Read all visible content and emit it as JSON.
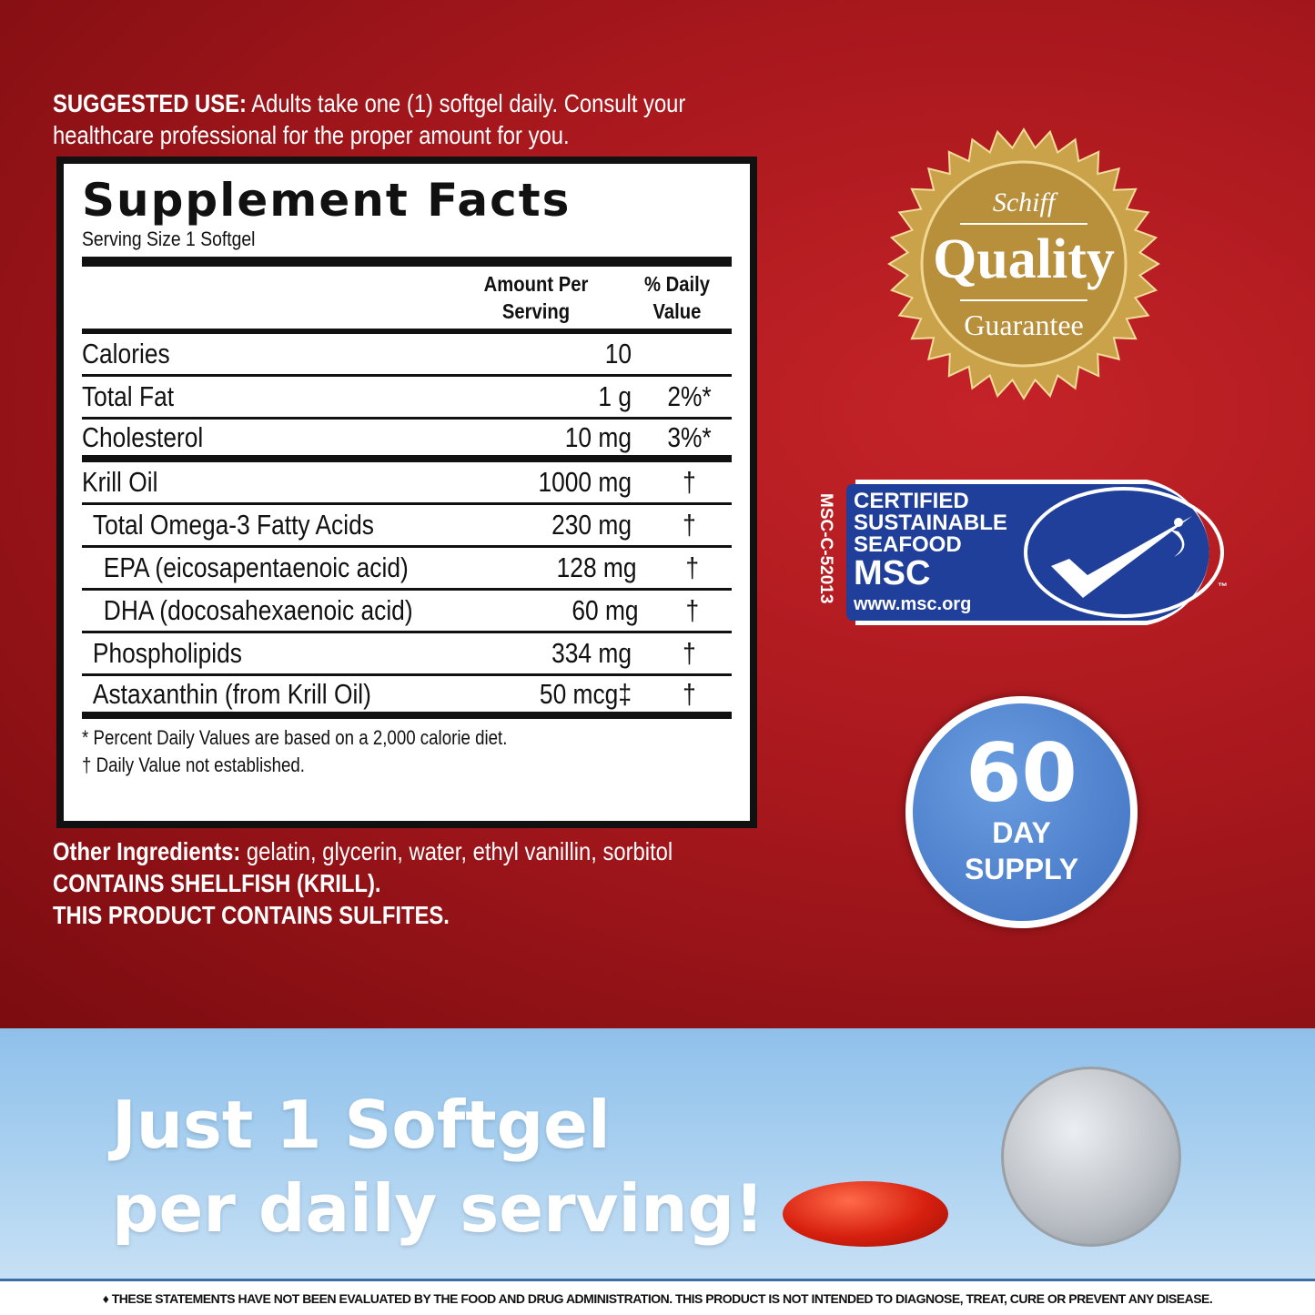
{
  "suggested_use": {
    "label": "SUGGESTED USE:",
    "text": " Adults take one (1) softgel daily. Consult your healthcare professional for the proper amount for you."
  },
  "facts": {
    "title": "Supplement Facts",
    "serving_size": "Serving Size 1 Softgel",
    "col_amount": "Amount Per Serving",
    "col_dv": "% Daily Value",
    "rows": [
      {
        "name": "Calories",
        "amount": "10",
        "dv": ""
      },
      {
        "name": "Total Fat",
        "amount": "1 g",
        "dv": "2%*"
      },
      {
        "name": "Cholesterol",
        "amount": "10 mg",
        "dv": "3%*"
      },
      {
        "name": "Krill Oil",
        "amount": "1000 mg",
        "dv": "†"
      },
      {
        "name": "Total Omega-3 Fatty Acids",
        "amount": "230 mg",
        "dv": "†"
      },
      {
        "name": "EPA (eicosapentaenoic acid)",
        "amount": "128 mg",
        "dv": "†"
      },
      {
        "name": "DHA (docosahexaenoic acid)",
        "amount": "60 mg",
        "dv": "†"
      },
      {
        "name": "Phospholipids",
        "amount": "334 mg",
        "dv": "†"
      },
      {
        "name": "Astaxanthin (from Krill Oil)",
        "amount": "50 mcg‡",
        "dv": "†"
      }
    ],
    "note1": "* Percent Daily Values are based on a 2,000 calorie diet.",
    "note2": "† Daily Value not established."
  },
  "other": {
    "label": "Other Ingredients:",
    "text": " gelatin, glycerin, water, ethyl vanillin, sorbitol",
    "allergen": "CONTAINS SHELLFISH (KRILL).",
    "sulfites": "THIS PRODUCT CONTAINS SULFITES."
  },
  "seal": {
    "brand": "Schiff",
    "word": "Quality",
    "sub": "Guarantee",
    "color": "#c9a24a"
  },
  "msc": {
    "code": "MSC-C-52013",
    "l1": "CERTIFIED",
    "l2": "SUSTAINABLE",
    "l3": "SEAFOOD",
    "l4": "MSC",
    "url": "www.msc.org",
    "tm": "™",
    "color": "#1f3f9a"
  },
  "supply": {
    "num": "60",
    "l1": "DAY",
    "l2": "SUPPLY"
  },
  "tagline": {
    "l1": "Just 1 Softgel",
    "l2": "per daily serving!"
  },
  "disclaimer": "♦ THESE STATEMENTS HAVE NOT BEEN EVALUATED BY THE FOOD AND DRUG ADMINISTRATION. THIS PRODUCT IS NOT INTENDED TO DIAGNOSE, TREAT, CURE OR PREVENT ANY DISEASE."
}
